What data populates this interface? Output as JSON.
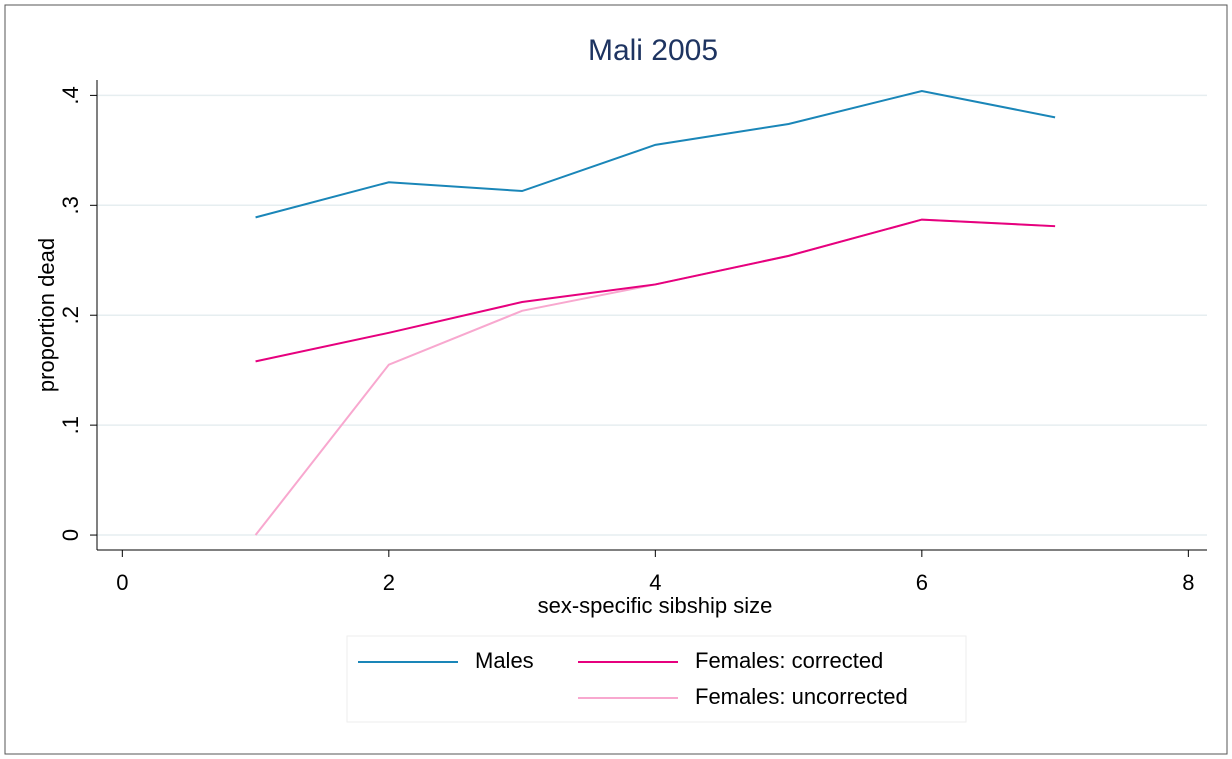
{
  "chart_data": {
    "type": "line",
    "title": "Mali 2005",
    "x_label": "sex-specific sibship size",
    "y_label": "proportion dead",
    "x": [
      1,
      2,
      3,
      4,
      5,
      6,
      7
    ],
    "series": [
      {
        "name": "Males",
        "color": "#1a86b8",
        "values": [
          0.289,
          0.321,
          0.313,
          0.355,
          0.374,
          0.404,
          0.38
        ]
      },
      {
        "name": "Females: corrected",
        "color": "#e6007e",
        "values": [
          0.158,
          0.184,
          0.212,
          0.228,
          0.254,
          0.287,
          0.281
        ]
      },
      {
        "name": "Females: uncorrected",
        "color": "#f8a8cf",
        "values": [
          0.0,
          0.155,
          0.204,
          0.228,
          0.254,
          0.287,
          0.281
        ]
      }
    ],
    "xlim": [
      -0.19,
      8.14
    ],
    "xticks": [
      0,
      2,
      4,
      6,
      8
    ],
    "ylim": [
      -0.0136,
      0.414
    ],
    "yticks": [
      {
        "value": 0,
        "label": "0"
      },
      {
        "value": 0.1,
        "label": ".1"
      },
      {
        "value": 0.2,
        "label": ".2"
      },
      {
        "value": 0.3,
        "label": ".3"
      },
      {
        "value": 0.4,
        "label": ".4"
      }
    ],
    "grid": true
  }
}
